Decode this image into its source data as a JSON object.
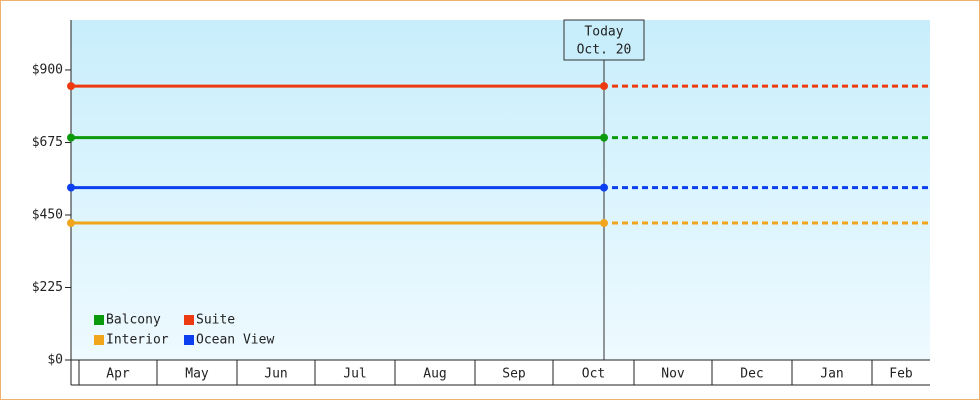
{
  "chart_data": {
    "type": "line",
    "annotation": {
      "title": "Today",
      "date": "Oct. 20"
    },
    "categories": [
      "Apr",
      "May",
      "Jun",
      "Jul",
      "Aug",
      "Sep",
      "Oct",
      "Nov",
      "Dec",
      "Jan",
      "Feb"
    ],
    "series": [
      {
        "name": "Balcony",
        "color": "#0b9a0b",
        "value": 690
      },
      {
        "name": "Suite",
        "color": "#ee3a10",
        "value": 850
      },
      {
        "name": "Interior",
        "color": "#f0a51c",
        "value": 425
      },
      {
        "name": "Ocean View",
        "color": "#0b3ff0",
        "value": 535
      }
    ],
    "ylim": [
      0,
      1055
    ],
    "yticks": [
      {
        "value": 0,
        "label": "$0"
      },
      {
        "value": 225,
        "label": "$225"
      },
      {
        "value": 450,
        "label": "$450"
      },
      {
        "value": 675,
        "label": "$675"
      },
      {
        "value": 900,
        "label": "$900"
      }
    ],
    "legend": "lower left"
  }
}
